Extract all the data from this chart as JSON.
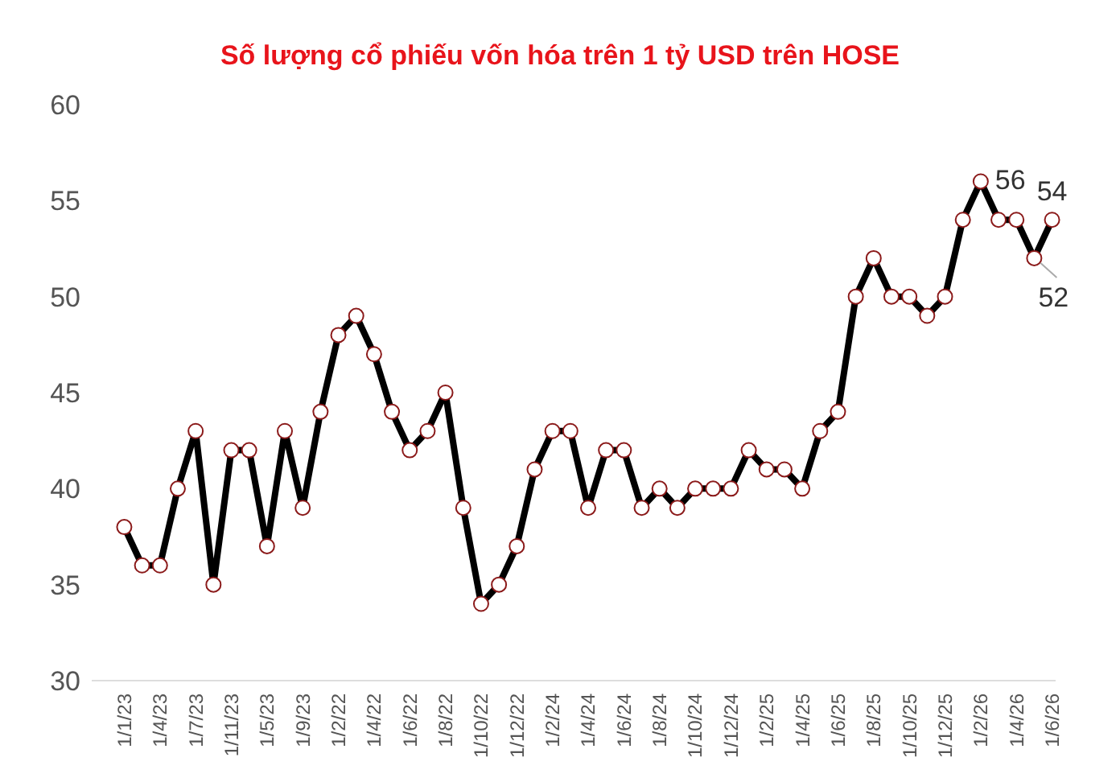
{
  "chart_data": {
    "type": "line",
    "title": "Số lượng cổ phiếu vốn hóa trên 1 tỷ USD trên HOSE",
    "categories": [
      "1/1/23",
      null,
      "1/4/23",
      null,
      "1/7/23",
      null,
      "1/11/23",
      null,
      "1/5/23",
      null,
      "1/9/23",
      null,
      "1/2/22",
      null,
      "1/4/22",
      null,
      "1/6/22",
      null,
      "1/8/22",
      null,
      "1/10/22",
      null,
      "1/12/22",
      null,
      "1/2/24",
      null,
      "1/4/24",
      null,
      "1/6/24",
      null,
      "1/8/24",
      null,
      "1/10/24",
      null,
      "1/12/24",
      null,
      "1/2/25",
      null,
      "1/4/25",
      null,
      "1/6/25",
      null,
      "1/8/25",
      null,
      "1/10/25",
      null,
      "1/12/25",
      null,
      "1/2/26",
      null,
      "1/4/26",
      null,
      "1/6/26"
    ],
    "series": [
      {
        "color": "#000000",
        "values": [
          38,
          36,
          36,
          40,
          43,
          35,
          42,
          42,
          37,
          43,
          39,
          44,
          48,
          49,
          47,
          44,
          42,
          43,
          45,
          39,
          34,
          35,
          37,
          41,
          43,
          43,
          39,
          42,
          42,
          39,
          40,
          39,
          40,
          40,
          40,
          42,
          41,
          41,
          40,
          43,
          44,
          50,
          52,
          50,
          50,
          49,
          50,
          54,
          56,
          54,
          54,
          52,
          54
        ],
        "value_labels": [
          null,
          null,
          null,
          null,
          null,
          null,
          null,
          null,
          null,
          null,
          null,
          null,
          null,
          null,
          null,
          null,
          null,
          null,
          null,
          null,
          null,
          null,
          null,
          null,
          null,
          null,
          null,
          null,
          null,
          null,
          null,
          null,
          null,
          null,
          null,
          null,
          null,
          null,
          null,
          null,
          null,
          null,
          null,
          null,
          null,
          null,
          null,
          null,
          "56",
          null,
          null,
          "52",
          "54"
        ]
      }
    ],
    "ylim": [
      30,
      60
    ],
    "yticks": [
      30,
      35,
      40,
      45,
      50,
      55,
      60
    ],
    "grid": false,
    "marker": "circle",
    "line_style": "solid"
  }
}
